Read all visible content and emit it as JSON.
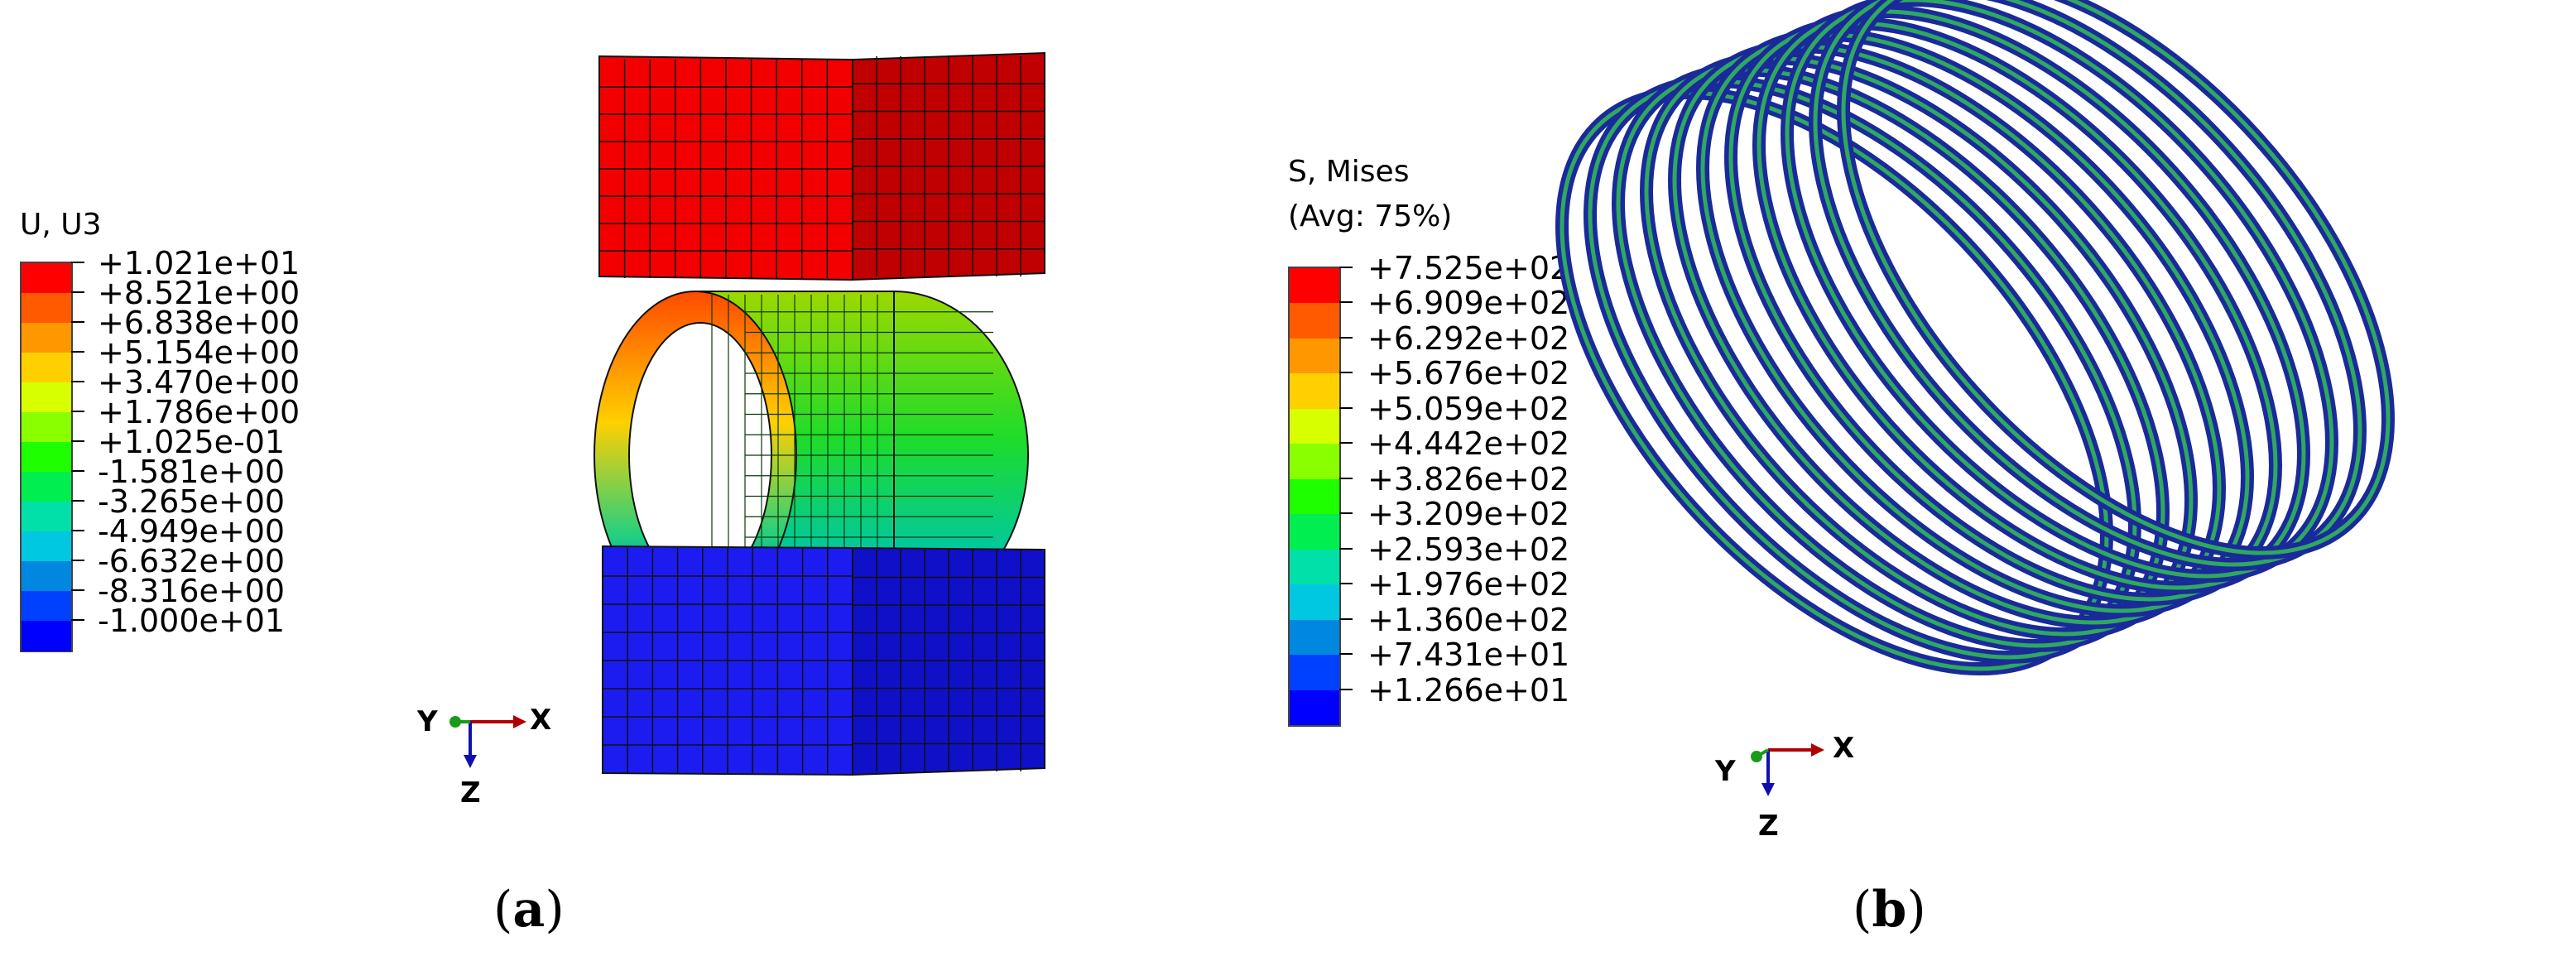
{
  "panel_a": {
    "legend_title": "U, U3",
    "legend_colors": [
      "#ff0000",
      "#ff5a00",
      "#ff9800",
      "#ffd000",
      "#d8ff00",
      "#8aff00",
      "#1eff00",
      "#00ee50",
      "#00e0a8",
      "#00c8e0",
      "#0088e0",
      "#0040ff",
      "#0000ff"
    ],
    "legend_labels": [
      "+1.021e+01",
      "+8.521e+00",
      "+6.838e+00",
      "+5.154e+00",
      "+3.470e+00",
      "+1.786e+00",
      "+1.025e-01",
      "-1.581e+00",
      "-3.265e+00",
      "-4.949e+00",
      "-6.632e+00",
      "-8.316e+00",
      "-1.000e+01"
    ],
    "triad": {
      "x": "X",
      "y": "Y",
      "z": "Z"
    },
    "caption_letter": "a",
    "top_block_color": "#f20000",
    "bottom_block_color": "#1c1cf0"
  },
  "panel_b": {
    "legend_title_1": "S, Mises",
    "legend_title_2": "(Avg: 75%)",
    "legend_colors": [
      "#ff0000",
      "#ff5a00",
      "#ff9800",
      "#ffd000",
      "#d8ff00",
      "#8aff00",
      "#1eff00",
      "#00ee50",
      "#00e0a8",
      "#00c8e0",
      "#0088e0",
      "#0040ff",
      "#0000ff"
    ],
    "legend_labels": [
      "+7.525e+02",
      "+6.909e+02",
      "+6.292e+02",
      "+5.676e+02",
      "+5.059e+02",
      "+4.442e+02",
      "+3.826e+02",
      "+3.209e+02",
      "+2.593e+02",
      "+1.976e+02",
      "+1.360e+02",
      "+7.431e+01",
      "+1.266e+01"
    ],
    "triad": {
      "x": "X",
      "y": "Y",
      "z": "Z"
    },
    "caption_letter": "b",
    "spring_color": "#1a2a9a",
    "spring_highlight": "#2fa860"
  }
}
